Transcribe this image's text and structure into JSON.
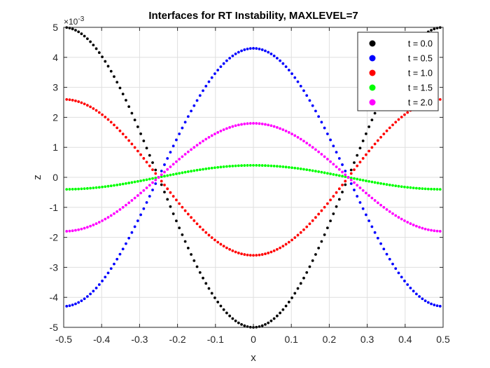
{
  "chart_data": {
    "type": "scatter",
    "title": "Interfaces for RT Instability, MAXLEVEL=7",
    "xlabel": "x",
    "ylabel": "z",
    "y_exponent_prefix": "×10",
    "y_exponent_power": "-3",
    "xlim": [
      -0.5,
      0.5
    ],
    "ylim": [
      -5,
      5
    ],
    "y_units_scale": 0.001,
    "x_ticks": [
      -0.5,
      -0.4,
      -0.3,
      -0.2,
      -0.1,
      0,
      0.1,
      0.2,
      0.3,
      0.4,
      0.5
    ],
    "x_tick_labels": [
      "-0.5",
      "-0.4",
      "-0.3",
      "-0.2",
      "-0.1",
      "0",
      "0.1",
      "0.2",
      "0.3",
      "0.4",
      "0.5"
    ],
    "y_ticks": [
      -5,
      -4,
      -3,
      -2,
      -1,
      0,
      1,
      2,
      3,
      4,
      5
    ],
    "y_tick_labels": [
      "-5",
      "-4",
      "-3",
      "-2",
      "-1",
      "0",
      "1",
      "2",
      "3",
      "4",
      "5"
    ],
    "grid": true,
    "legend_position": "top-right",
    "x_sample": {
      "start": -0.4921875,
      "step": 0.0078125,
      "count": 127
    },
    "series": [
      {
        "name": "t = 0.0",
        "color": "#000000",
        "amplitude": -5.0
      },
      {
        "name": "t = 0.5",
        "color": "#0000ff",
        "amplitude": 4.3
      },
      {
        "name": "t = 1.0",
        "color": "#ff0000",
        "amplitude": -2.6
      },
      {
        "name": "t = 1.5",
        "color": "#00ff00",
        "amplitude": 0.4
      },
      {
        "name": "t = 2.0",
        "color": "#ff00ff",
        "amplitude": 1.8
      }
    ],
    "curve_form": "z = amplitude * cos(2*pi*x)"
  }
}
